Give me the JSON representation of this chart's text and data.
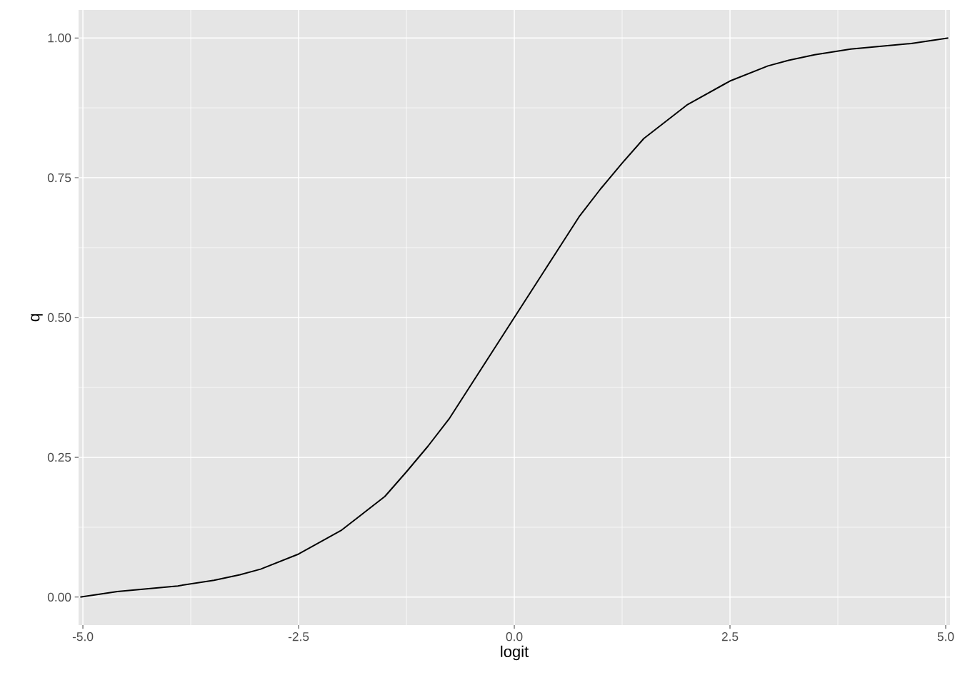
{
  "chart_data": {
    "type": "line",
    "xlabel": "logit",
    "ylabel": "q",
    "color": "#000000",
    "x": [
      -5.03,
      -4.6,
      -3.9,
      -3.48,
      -3.18,
      -2.94,
      -2.5,
      -2.0,
      -1.5,
      -1.25,
      -1.0,
      -0.75,
      -0.5,
      -0.25,
      0,
      0.25,
      0.5,
      0.75,
      1.0,
      1.25,
      1.5,
      2.0,
      2.5,
      2.94,
      3.18,
      3.48,
      3.9,
      4.6,
      5.03
    ],
    "values": [
      0,
      0.01,
      0.02,
      0.03,
      0.04,
      0.05,
      0.077,
      0.12,
      0.18,
      0.224,
      0.27,
      0.32,
      0.38,
      0.44,
      0.5,
      0.56,
      0.62,
      0.68,
      0.73,
      0.776,
      0.82,
      0.88,
      0.923,
      0.95,
      0.96,
      0.97,
      0.98,
      0.99,
      1
    ],
    "xlim": [
      -5.05,
      5.05
    ],
    "ylim": [
      -0.05,
      1.05
    ],
    "xticks": [
      {
        "value": -5,
        "label": "-5.0"
      },
      {
        "value": -2.5,
        "label": "-2.5"
      },
      {
        "value": 0,
        "label": "0.0"
      },
      {
        "value": 2.5,
        "label": "2.5"
      },
      {
        "value": 5,
        "label": "5.0"
      }
    ],
    "yticks": [
      {
        "value": 0,
        "label": "0.00"
      },
      {
        "value": 0.25,
        "label": "0.25"
      },
      {
        "value": 0.5,
        "label": "0.50"
      },
      {
        "value": 0.75,
        "label": "0.75"
      },
      {
        "value": 1,
        "label": "1.00"
      }
    ],
    "grid": true
  }
}
